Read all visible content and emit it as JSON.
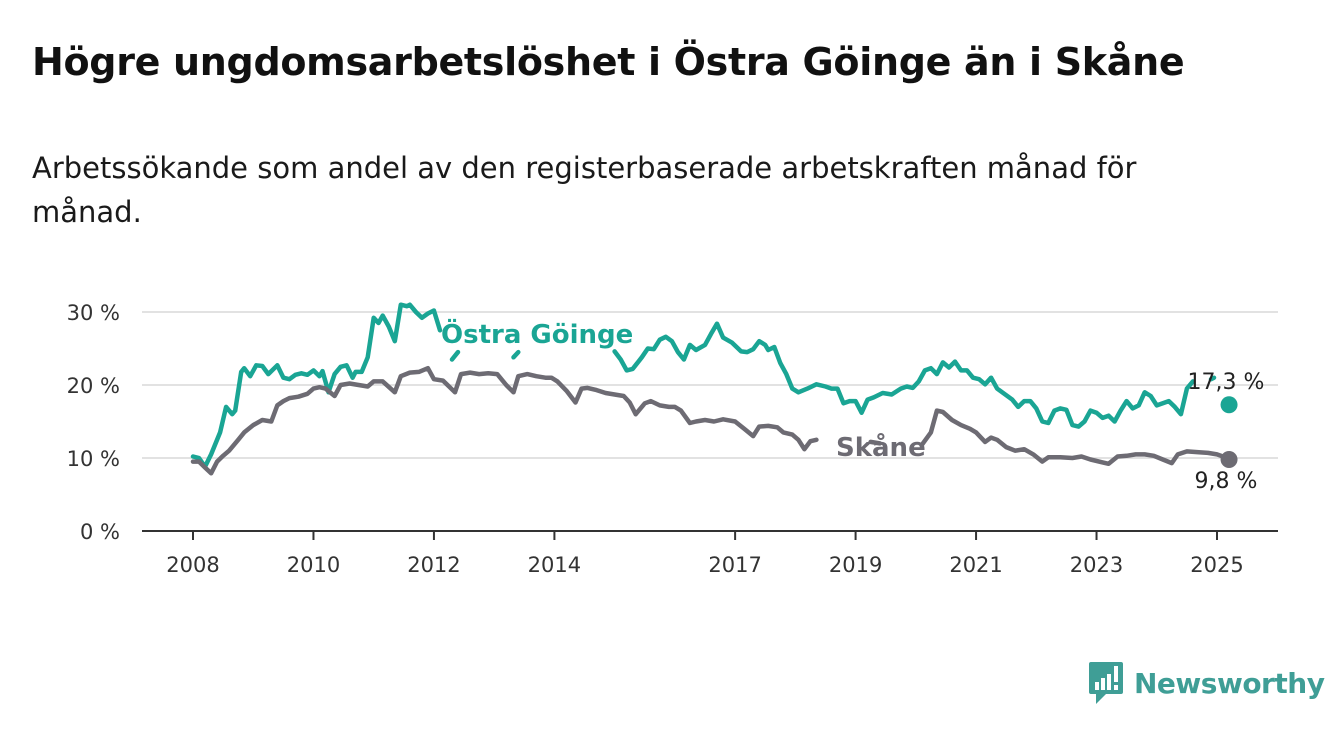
{
  "title": "Högre ungdomsarbetslöshet i Östra Göinge än i Skåne",
  "subtitle": "Arbetssökande som andel av den registerbaserade arbetskraften månad för månad.",
  "brand": {
    "name": "Newsworthy",
    "icon": "newsworthy-logo-icon",
    "color": "#3f9e96"
  },
  "chart_data": {
    "type": "line",
    "title": "",
    "xlabel": "",
    "ylabel": "",
    "ylim": [
      0,
      30
    ],
    "xlim": [
      2008,
      2025.5
    ],
    "grid": "horizontal",
    "y_ticks": [
      {
        "value": 0,
        "label": "0 %"
      },
      {
        "value": 10,
        "label": "10 %"
      },
      {
        "value": 20,
        "label": "20 %"
      },
      {
        "value": 30,
        "label": "30 %"
      }
    ],
    "x_ticks": [
      {
        "value": 2008,
        "label": "2008"
      },
      {
        "value": 2010,
        "label": "2010"
      },
      {
        "value": 2012,
        "label": "2012"
      },
      {
        "value": 2014,
        "label": "2014"
      },
      {
        "value": 2017,
        "label": "2017"
      },
      {
        "value": 2019,
        "label": "2019"
      },
      {
        "value": 2021,
        "label": "2021"
      },
      {
        "value": 2023,
        "label": "2023"
      },
      {
        "value": 2025,
        "label": "2025"
      }
    ],
    "series": [
      {
        "name": "Östra Göinge",
        "color": "#1aa594",
        "end_label": "17,3 %",
        "points": [
          [
            2008.0,
            10.2
          ],
          [
            2008.1,
            10.0
          ],
          [
            2008.2,
            8.8
          ],
          [
            2008.3,
            10.5
          ],
          [
            2008.45,
            13.5
          ],
          [
            2008.55,
            17.0
          ],
          [
            2008.65,
            16.0
          ],
          [
            2008.7,
            16.5
          ],
          [
            2008.8,
            21.8
          ],
          [
            2008.85,
            22.3
          ],
          [
            2008.95,
            21.2
          ],
          [
            2009.05,
            22.7
          ],
          [
            2009.15,
            22.6
          ],
          [
            2009.25,
            21.5
          ],
          [
            2009.4,
            22.7
          ],
          [
            2009.5,
            21.0
          ],
          [
            2009.6,
            20.8
          ],
          [
            2009.7,
            21.4
          ],
          [
            2009.8,
            21.6
          ],
          [
            2009.9,
            21.4
          ],
          [
            2010.0,
            22.0
          ],
          [
            2010.1,
            21.2
          ],
          [
            2010.15,
            21.9
          ],
          [
            2010.25,
            19.0
          ],
          [
            2010.35,
            21.5
          ],
          [
            2010.45,
            22.5
          ],
          [
            2010.55,
            22.7
          ],
          [
            2010.65,
            21.0
          ],
          [
            2010.7,
            21.8
          ],
          [
            2010.8,
            21.8
          ],
          [
            2010.9,
            23.8
          ],
          [
            2011.0,
            29.2
          ],
          [
            2011.08,
            28.5
          ],
          [
            2011.15,
            29.5
          ],
          [
            2011.25,
            28.0
          ],
          [
            2011.35,
            26.0
          ],
          [
            2011.45,
            31.0
          ],
          [
            2011.55,
            30.8
          ],
          [
            2011.6,
            31.0
          ],
          [
            2011.7,
            30.0
          ],
          [
            2011.8,
            29.2
          ],
          [
            2011.9,
            29.8
          ],
          [
            2012.0,
            30.2
          ],
          [
            2012.1,
            27.5
          ],
          null,
          [
            2012.3,
            23.5
          ],
          [
            2012.4,
            24.5
          ],
          null,
          [
            2013.32,
            23.8
          ],
          [
            2013.4,
            24.5
          ],
          null,
          [
            2015.0,
            24.6
          ],
          [
            2015.1,
            23.5
          ],
          [
            2015.2,
            22.0
          ],
          [
            2015.3,
            22.2
          ],
          [
            2015.45,
            23.8
          ],
          [
            2015.55,
            25.0
          ],
          [
            2015.65,
            24.9
          ],
          [
            2015.75,
            26.2
          ],
          [
            2015.85,
            26.6
          ],
          [
            2015.95,
            26.0
          ],
          [
            2016.05,
            24.5
          ],
          [
            2016.15,
            23.5
          ],
          [
            2016.25,
            25.5
          ],
          [
            2016.35,
            24.8
          ],
          [
            2016.5,
            25.5
          ],
          [
            2016.6,
            27.0
          ],
          [
            2016.7,
            28.4
          ],
          [
            2016.8,
            26.5
          ],
          [
            2016.95,
            25.8
          ],
          [
            2017.1,
            24.6
          ],
          [
            2017.2,
            24.5
          ],
          [
            2017.3,
            24.9
          ],
          [
            2017.4,
            26.0
          ],
          [
            2017.5,
            25.5
          ],
          [
            2017.55,
            24.8
          ],
          [
            2017.65,
            25.2
          ],
          [
            2017.75,
            23.0
          ],
          [
            2017.85,
            21.5
          ],
          [
            2017.95,
            19.5
          ],
          [
            2018.05,
            19.0
          ],
          [
            2018.2,
            19.5
          ],
          [
            2018.35,
            20.1
          ],
          [
            2018.5,
            19.8
          ],
          [
            2018.6,
            19.5
          ],
          [
            2018.7,
            19.5
          ],
          [
            2018.8,
            17.5
          ],
          [
            2018.9,
            17.8
          ],
          [
            2019.0,
            17.8
          ],
          [
            2019.1,
            16.2
          ],
          [
            2019.2,
            18.0
          ],
          [
            2019.3,
            18.3
          ],
          [
            2019.45,
            18.9
          ],
          [
            2019.6,
            18.7
          ],
          [
            2019.75,
            19.5
          ],
          [
            2019.85,
            19.8
          ],
          [
            2019.95,
            19.6
          ],
          [
            2020.05,
            20.5
          ],
          [
            2020.15,
            22.0
          ],
          [
            2020.25,
            22.3
          ],
          [
            2020.35,
            21.5
          ],
          [
            2020.45,
            23.1
          ],
          [
            2020.55,
            22.4
          ],
          [
            2020.65,
            23.2
          ],
          [
            2020.75,
            22.0
          ],
          [
            2020.85,
            22.0
          ],
          [
            2020.95,
            21.0
          ],
          [
            2021.05,
            20.8
          ],
          [
            2021.15,
            20.1
          ],
          [
            2021.25,
            21.0
          ],
          [
            2021.35,
            19.5
          ],
          [
            2021.5,
            18.6
          ],
          [
            2021.6,
            18.0
          ],
          [
            2021.7,
            17.0
          ],
          [
            2021.8,
            17.8
          ],
          [
            2021.9,
            17.8
          ],
          [
            2022.0,
            16.8
          ],
          [
            2022.1,
            15.0
          ],
          [
            2022.2,
            14.8
          ],
          [
            2022.3,
            16.5
          ],
          [
            2022.4,
            16.8
          ],
          [
            2022.5,
            16.6
          ],
          [
            2022.6,
            14.5
          ],
          [
            2022.7,
            14.3
          ],
          [
            2022.8,
            15.0
          ],
          [
            2022.9,
            16.5
          ],
          [
            2023.0,
            16.2
          ],
          [
            2023.1,
            15.5
          ],
          [
            2023.2,
            15.8
          ],
          [
            2023.3,
            15.0
          ],
          [
            2023.4,
            16.5
          ],
          [
            2023.5,
            17.8
          ],
          [
            2023.6,
            16.8
          ],
          [
            2023.7,
            17.2
          ],
          [
            2023.8,
            19.0
          ],
          [
            2023.9,
            18.5
          ],
          [
            2024.0,
            17.2
          ],
          [
            2024.1,
            17.5
          ],
          [
            2024.2,
            17.8
          ],
          [
            2024.3,
            17.0
          ],
          [
            2024.4,
            16.0
          ],
          [
            2024.5,
            19.5
          ],
          [
            2024.6,
            20.5
          ],
          null,
          [
            2024.9,
            20.8
          ],
          [
            2024.95,
            21.0
          ]
        ],
        "last_point": [
          2025.2,
          17.3
        ]
      },
      {
        "name": "Skåne",
        "color": "#6d6b73",
        "end_label": "9,8 %",
        "points": [
          [
            2008.0,
            9.5
          ],
          [
            2008.1,
            9.5
          ],
          [
            2008.2,
            8.7
          ],
          [
            2008.3,
            7.9
          ],
          [
            2008.4,
            9.5
          ],
          [
            2008.5,
            10.3
          ],
          [
            2008.6,
            11.0
          ],
          [
            2008.75,
            12.5
          ],
          [
            2008.85,
            13.5
          ],
          [
            2009.0,
            14.5
          ],
          [
            2009.15,
            15.2
          ],
          [
            2009.3,
            15.0
          ],
          [
            2009.4,
            17.2
          ],
          [
            2009.5,
            17.8
          ],
          [
            2009.6,
            18.2
          ],
          [
            2009.75,
            18.4
          ],
          [
            2009.9,
            18.8
          ],
          [
            2010.0,
            19.5
          ],
          [
            2010.1,
            19.7
          ],
          [
            2010.2,
            19.5
          ],
          [
            2010.35,
            18.5
          ],
          [
            2010.45,
            20.0
          ],
          [
            2010.6,
            20.2
          ],
          [
            2010.75,
            20.0
          ],
          [
            2010.9,
            19.8
          ],
          [
            2011.0,
            20.5
          ],
          [
            2011.15,
            20.5
          ],
          [
            2011.35,
            19.0
          ],
          [
            2011.45,
            21.2
          ],
          [
            2011.6,
            21.7
          ],
          [
            2011.75,
            21.8
          ],
          [
            2011.9,
            22.3
          ],
          [
            2012.0,
            20.8
          ],
          [
            2012.15,
            20.6
          ],
          [
            2012.35,
            19.0
          ],
          [
            2012.45,
            21.5
          ],
          [
            2012.6,
            21.7
          ],
          [
            2012.75,
            21.5
          ],
          [
            2012.9,
            21.6
          ],
          [
            2013.05,
            21.5
          ],
          [
            2013.2,
            20.0
          ],
          [
            2013.32,
            19.0
          ],
          [
            2013.4,
            21.2
          ],
          [
            2013.55,
            21.5
          ],
          [
            2013.7,
            21.2
          ],
          [
            2013.85,
            21.0
          ],
          [
            2013.95,
            21.0
          ],
          [
            2014.05,
            20.5
          ],
          [
            2014.2,
            19.2
          ],
          [
            2014.35,
            17.6
          ],
          [
            2014.45,
            19.5
          ],
          [
            2014.55,
            19.6
          ],
          [
            2014.7,
            19.3
          ],
          [
            2014.85,
            18.9
          ],
          [
            2015.0,
            18.7
          ],
          [
            2015.15,
            18.5
          ],
          [
            2015.25,
            17.6
          ],
          [
            2015.35,
            16.0
          ],
          [
            2015.5,
            17.5
          ],
          [
            2015.6,
            17.8
          ],
          [
            2015.75,
            17.2
          ],
          [
            2015.9,
            17.0
          ],
          [
            2016.0,
            17.0
          ],
          [
            2016.1,
            16.5
          ],
          [
            2016.25,
            14.8
          ],
          [
            2016.35,
            15.0
          ],
          [
            2016.5,
            15.2
          ],
          [
            2016.65,
            15.0
          ],
          [
            2016.8,
            15.3
          ],
          [
            2017.0,
            15.0
          ],
          [
            2017.15,
            14.0
          ],
          [
            2017.3,
            13.0
          ],
          [
            2017.4,
            14.3
          ],
          [
            2017.55,
            14.4
          ],
          [
            2017.7,
            14.2
          ],
          [
            2017.8,
            13.5
          ],
          [
            2017.95,
            13.2
          ],
          [
            2018.05,
            12.5
          ],
          [
            2018.15,
            11.2
          ],
          [
            2018.25,
            12.3
          ],
          [
            2018.35,
            12.5
          ],
          null,
          [
            2019.25,
            12.2
          ],
          [
            2019.4,
            12.0
          ],
          null,
          [
            2020.1,
            11.8
          ],
          [
            2020.25,
            13.5
          ],
          [
            2020.35,
            16.5
          ],
          [
            2020.45,
            16.3
          ],
          [
            2020.6,
            15.2
          ],
          [
            2020.75,
            14.5
          ],
          [
            2020.9,
            14.0
          ],
          [
            2021.0,
            13.5
          ],
          [
            2021.15,
            12.2
          ],
          [
            2021.25,
            12.8
          ],
          [
            2021.35,
            12.5
          ],
          [
            2021.5,
            11.5
          ],
          [
            2021.65,
            11.0
          ],
          [
            2021.8,
            11.2
          ],
          [
            2021.95,
            10.5
          ],
          [
            2022.1,
            9.5
          ],
          [
            2022.2,
            10.1
          ],
          [
            2022.4,
            10.1
          ],
          [
            2022.6,
            10.0
          ],
          [
            2022.75,
            10.2
          ],
          [
            2022.9,
            9.8
          ],
          [
            2023.1,
            9.4
          ],
          [
            2023.2,
            9.2
          ],
          [
            2023.35,
            10.2
          ],
          [
            2023.5,
            10.3
          ],
          [
            2023.65,
            10.5
          ],
          [
            2023.8,
            10.5
          ],
          [
            2023.95,
            10.3
          ],
          [
            2024.1,
            9.8
          ],
          [
            2024.25,
            9.3
          ],
          [
            2024.35,
            10.5
          ],
          [
            2024.5,
            10.9
          ],
          [
            2024.7,
            10.8
          ],
          [
            2024.85,
            10.7
          ],
          [
            2025.0,
            10.5
          ],
          [
            2025.1,
            10.2
          ]
        ],
        "last_point": [
          2025.2,
          9.8
        ]
      }
    ]
  }
}
